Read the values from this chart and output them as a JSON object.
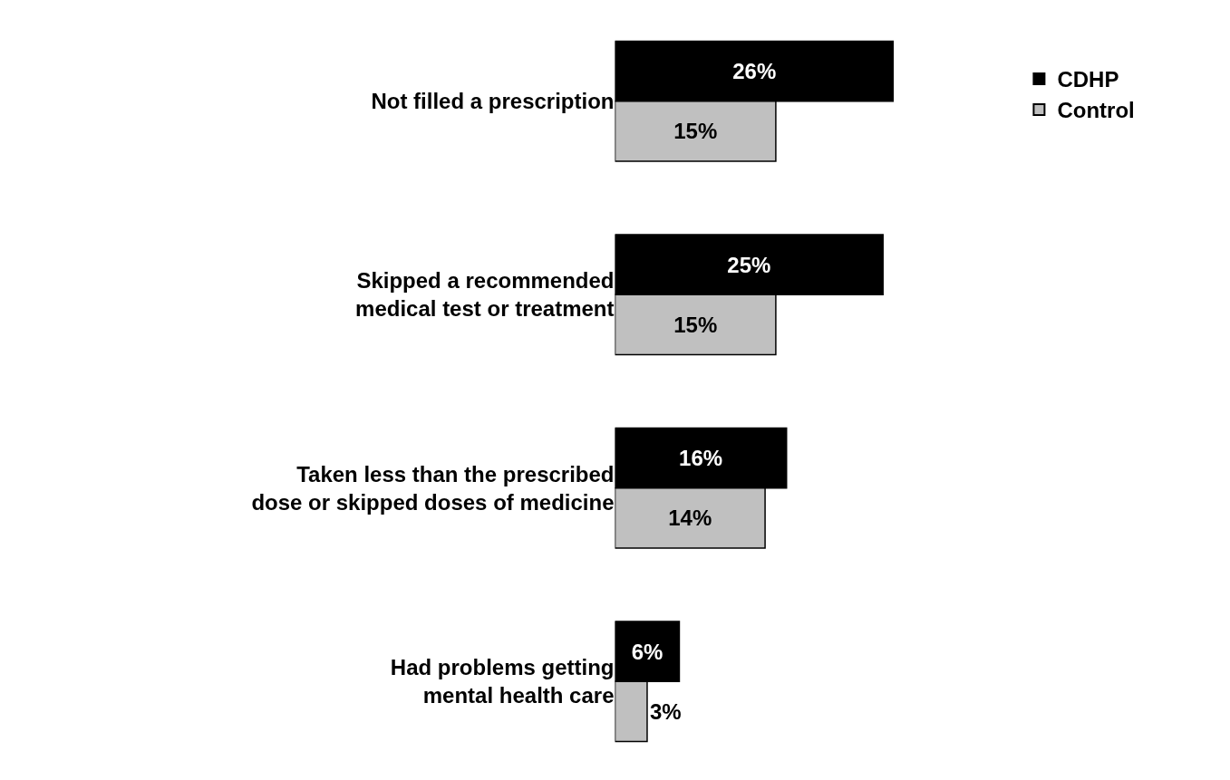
{
  "chart_data": {
    "type": "bar",
    "orientation": "horizontal",
    "categories": [
      "Not filled a prescription",
      "Skipped a recommended medical test or treatment",
      "Taken less than the prescribed dose or skipped doses of medicine",
      "Had problems getting mental health care"
    ],
    "series": [
      {
        "name": "CDHP",
        "color": "#000000",
        "values": [
          26,
          25,
          16,
          6
        ],
        "value_labels": [
          "26%",
          "25%",
          "16%",
          "6%"
        ]
      },
      {
        "name": "Control",
        "color": "#c0c0c0",
        "values": [
          15,
          15,
          14,
          3
        ],
        "value_labels": [
          "15%",
          "15%",
          "14%",
          "3%"
        ]
      }
    ],
    "xlim": [
      0,
      26
    ],
    "tick_labels": "y",
    "legend": "top right"
  }
}
